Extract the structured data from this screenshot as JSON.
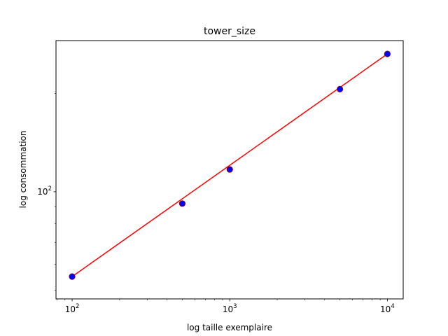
{
  "chart_data": {
    "type": "scatter",
    "title": "tower_size",
    "xlabel": "log taille exemplaire",
    "ylabel": "log consommation",
    "xscale": "log",
    "yscale": "log",
    "xlim": [
      79,
      12600
    ],
    "ylim": [
      47,
      290
    ],
    "x_ticks": [
      100,
      1000,
      10000
    ],
    "y_ticks": [
      100
    ],
    "grid": false,
    "series": [
      {
        "kind": "scatter",
        "color": "#0000ff",
        "edgecolor": "#8b0000",
        "x": [
          100,
          500,
          1000,
          5000,
          10000
        ],
        "y": [
          55,
          92,
          117,
          206,
          264
        ]
      },
      {
        "kind": "line",
        "color": "#ff0000",
        "x": [
          100,
          10000
        ],
        "y": [
          55,
          264
        ]
      }
    ]
  }
}
